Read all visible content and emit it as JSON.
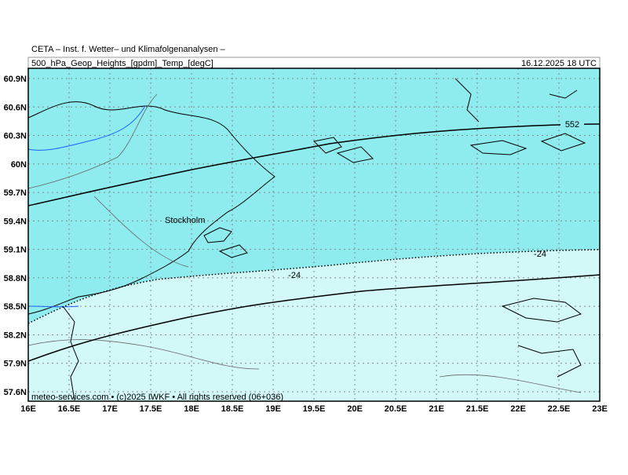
{
  "header": {
    "title": "CETA – Inst. f. Wetter– und Klimafolgenanalysen –",
    "subtitle": "500_hPa_Geop_Heights_[gpdm]_Temp_[degC]",
    "timestamp": "16.12.2025 18 UTC"
  },
  "map": {
    "lon_ticks": [
      {
        "value": 16,
        "label": "16E"
      },
      {
        "value": 16.5,
        "label": "16.5E"
      },
      {
        "value": 17,
        "label": "17E"
      },
      {
        "value": 17.5,
        "label": "17.5E"
      },
      {
        "value": 18,
        "label": "18E"
      },
      {
        "value": 18.5,
        "label": "18.5E"
      },
      {
        "value": 19,
        "label": "19E"
      },
      {
        "value": 19.5,
        "label": "19.5E"
      },
      {
        "value": 20,
        "label": "20E"
      },
      {
        "value": 20.5,
        "label": "20.5E"
      },
      {
        "value": 21,
        "label": "21E"
      },
      {
        "value": 21.5,
        "label": "21.5E"
      },
      {
        "value": 22,
        "label": "22E"
      },
      {
        "value": 22.5,
        "label": "22.5E"
      },
      {
        "value": 23,
        "label": "23E"
      }
    ],
    "lat_ticks": [
      {
        "value": 60.9,
        "label": "60.9N"
      },
      {
        "value": 60.6,
        "label": "60.6N"
      },
      {
        "value": 60.3,
        "label": "60.3N"
      },
      {
        "value": 60,
        "label": "60N"
      },
      {
        "value": 59.7,
        "label": "59.7N"
      },
      {
        "value": 59.4,
        "label": "59.4N"
      },
      {
        "value": 59.1,
        "label": "59.1N"
      },
      {
        "value": 58.8,
        "label": "58.8N"
      },
      {
        "value": 58.5,
        "label": "58.5N"
      },
      {
        "value": 58.2,
        "label": "58.2N"
      },
      {
        "value": 57.9,
        "label": "57.9N"
      },
      {
        "value": 57.6,
        "label": "57.6N"
      }
    ],
    "height_label": "552",
    "temp_labels": [
      "-24",
      "-24"
    ],
    "place": "Stockholm"
  },
  "footer": "meteo-services.com • (c)2025 IWKF • All rights reserved (06+036)"
}
